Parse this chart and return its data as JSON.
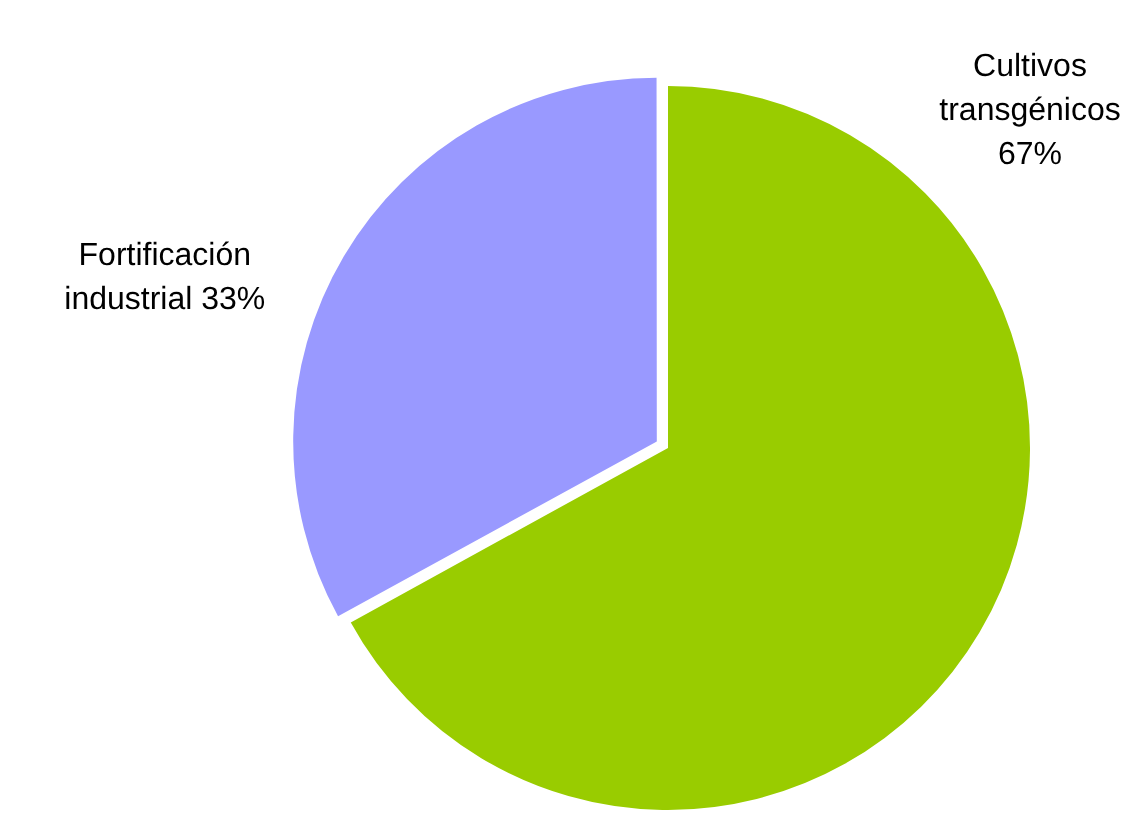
{
  "chart_data": {
    "type": "pie",
    "categories": [
      "Cultivos transgénicos",
      "Fortificación industrial"
    ],
    "values": [
      67,
      33
    ],
    "colors": [
      "#99cc00",
      "#9999ff"
    ],
    "value_labels": [
      "67%",
      "33%"
    ],
    "legend": false
  }
}
